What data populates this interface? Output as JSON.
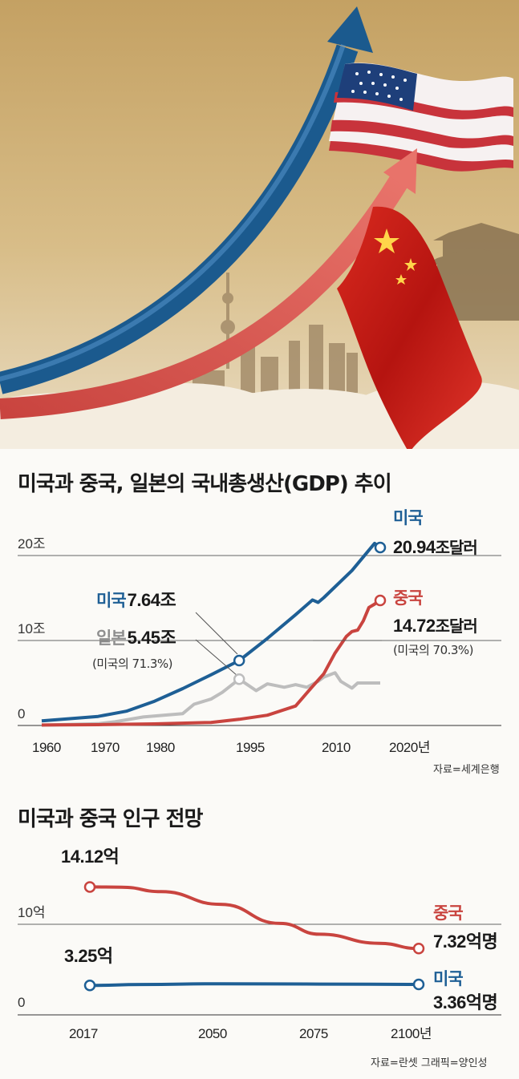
{
  "colors": {
    "us": "#1e5f95",
    "china": "#c9443f",
    "japan": "#bdbdbd",
    "hero_bg": "#c9a86a"
  },
  "hero": {
    "icons": [
      "up-arrow-icon",
      "us-flag-icon",
      "china-flag-icon",
      "city-skyline-icon",
      "gate-tower-icon"
    ]
  },
  "gdp": {
    "title": "미국과 중국, 일본의 국내총생산(GDP) 추이",
    "y_ticks": [
      "0",
      "10조",
      "20조"
    ],
    "x_ticks": [
      "1960",
      "1970",
      "1980",
      "1995",
      "2010",
      "2020년"
    ],
    "source": "자료=세계은행",
    "us_label": {
      "name": "미국",
      "value": "20.94",
      "unit": "조달러"
    },
    "cn_label": {
      "name": "중국",
      "value": "14.72",
      "unit": "조달러",
      "note": "(미국의 70.3%)"
    },
    "us1995": {
      "name": "미국",
      "value": "7.64조"
    },
    "jp1995": {
      "name": "일본",
      "value": "5.45조",
      "note": "(미국의 71.3%)"
    }
  },
  "pop": {
    "title": "미국과 중국 인구 전망",
    "y_ticks": [
      "0",
      "10억"
    ],
    "x_ticks": [
      "2017",
      "2050",
      "2075",
      "2100년"
    ],
    "source": "자료=란셋  그래픽=양인성",
    "cn_start": "14.12억",
    "us_start": "3.25억",
    "cn_end_name": "중국",
    "cn_end_value": "7.32억명",
    "us_end_name": "미국",
    "us_end_value": "3.36억명"
  },
  "chart_data": [
    {
      "type": "line",
      "title": "미국과 중국, 일본의 국내총생산(GDP) 추이",
      "y_unit": "조달러",
      "ylim": [
        0,
        22
      ],
      "x_ticks": [
        1960,
        1970,
        1980,
        1995,
        2010,
        2020
      ],
      "series": [
        {
          "name": "미국",
          "color": "#1e5f95",
          "points": [
            [
              1960,
              0.54
            ],
            [
              1970,
              1.07
            ],
            [
              1975,
              1.68
            ],
            [
              1980,
              2.86
            ],
            [
              1985,
              4.34
            ],
            [
              1990,
              5.96
            ],
            [
              1995,
              7.64
            ],
            [
              2000,
              10.25
            ],
            [
              2005,
              13.04
            ],
            [
              2008,
              14.77
            ],
            [
              2009,
              14.48
            ],
            [
              2010,
              15.05
            ],
            [
              2015,
              18.24
            ],
            [
              2019,
              21.43
            ],
            [
              2020,
              20.94
            ]
          ]
        },
        {
          "name": "중국",
          "color": "#c9443f",
          "points": [
            [
              1960,
              0.06
            ],
            [
              1970,
              0.09
            ],
            [
              1980,
              0.19
            ],
            [
              1990,
              0.36
            ],
            [
              1995,
              0.73
            ],
            [
              2000,
              1.21
            ],
            [
              2005,
              2.29
            ],
            [
              2008,
              4.59
            ],
            [
              2010,
              6.09
            ],
            [
              2012,
              8.53
            ],
            [
              2014,
              10.48
            ],
            [
              2015,
              11.06
            ],
            [
              2016,
              11.23
            ],
            [
              2017,
              12.31
            ],
            [
              2018,
              13.89
            ],
            [
              2019,
              14.28
            ],
            [
              2020,
              14.72
            ]
          ]
        },
        {
          "name": "일본",
          "color": "#bdbdbd",
          "points": [
            [
              1960,
              0.04
            ],
            [
              1970,
              0.21
            ],
            [
              1973,
              0.43
            ],
            [
              1978,
              1.0
            ],
            [
              1985,
              1.4
            ],
            [
              1987,
              2.5
            ],
            [
              1990,
              3.1
            ],
            [
              1992,
              3.9
            ],
            [
              1995,
              5.45
            ],
            [
              1998,
              4.1
            ],
            [
              2000,
              4.9
            ],
            [
              2003,
              4.5
            ],
            [
              2005,
              4.8
            ],
            [
              2007,
              4.5
            ],
            [
              2009,
              5.2
            ],
            [
              2010,
              5.7
            ],
            [
              2012,
              6.2
            ],
            [
              2013,
              5.2
            ],
            [
              2015,
              4.4
            ],
            [
              2016,
              5.0
            ],
            [
              2018,
              5.0
            ],
            [
              2020,
              5.0
            ]
          ]
        }
      ],
      "annotations": [
        {
          "series": "미국",
          "x": 2020,
          "text": "20.94조달러"
        },
        {
          "series": "중국",
          "x": 2020,
          "text": "14.72조달러 (미국의 70.3%)"
        },
        {
          "series": "미국",
          "x": 1995,
          "text": "7.64조"
        },
        {
          "series": "일본",
          "x": 1995,
          "text": "5.45조 (미국의 71.3%)"
        }
      ],
      "source": "자료=세계은행"
    },
    {
      "type": "line",
      "title": "미국과 중국 인구 전망",
      "y_unit": "억",
      "ylim": [
        0,
        17
      ],
      "x_ticks": [
        2017,
        2050,
        2075,
        2100
      ],
      "series": [
        {
          "name": "중국",
          "color": "#c9443f",
          "points": [
            [
              2017,
              14.12
            ],
            [
              2025,
              14.1
            ],
            [
              2035,
              13.6
            ],
            [
              2050,
              12.2
            ],
            [
              2065,
              10.1
            ],
            [
              2075,
              8.9
            ],
            [
              2090,
              7.9
            ],
            [
              2100,
              7.32
            ]
          ]
        },
        {
          "name": "미국",
          "color": "#1e5f95",
          "points": [
            [
              2017,
              3.25
            ],
            [
              2030,
              3.35
            ],
            [
              2050,
              3.43
            ],
            [
              2075,
              3.4
            ],
            [
              2100,
              3.36
            ]
          ]
        }
      ],
      "annotations": [
        {
          "series": "중국",
          "x": 2017,
          "text": "14.12억"
        },
        {
          "series": "미국",
          "x": 2017,
          "text": "3.25억"
        },
        {
          "series": "중국",
          "x": 2100,
          "text": "7.32억명"
        },
        {
          "series": "미국",
          "x": 2100,
          "text": "3.36억명"
        }
      ],
      "source": "자료=란셋 그래픽=양인성"
    }
  ]
}
